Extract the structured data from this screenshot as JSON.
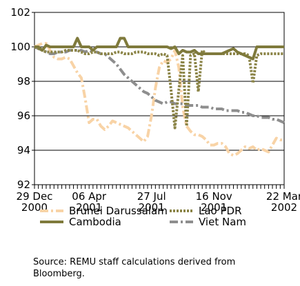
{
  "chart_data": {
    "type": "line",
    "categories": [
      "29 Dec\n2000",
      null,
      null,
      null,
      null,
      null,
      null,
      null,
      null,
      null,
      null,
      null,
      null,
      null,
      "06 Apr\n2001",
      null,
      null,
      null,
      null,
      null,
      null,
      null,
      null,
      null,
      null,
      null,
      null,
      null,
      null,
      null,
      "27 Jul\n2001",
      null,
      null,
      null,
      null,
      null,
      null,
      null,
      null,
      null,
      null,
      null,
      null,
      null,
      null,
      null,
      "16 Nov\n2001",
      null,
      null,
      null,
      null,
      null,
      null,
      null,
      null,
      null,
      null,
      null,
      null,
      null,
      null,
      null,
      null,
      null,
      "22 Mar\n2002"
    ],
    "series": [
      {
        "name": "Brunei Darussalam",
        "color": "#f8d3a6",
        "dash": "12 4 3 4",
        "values": [
          100.0,
          100.1,
          100.2,
          100.2,
          99.8,
          99.4,
          99.3,
          99.3,
          99.4,
          99.3,
          98.9,
          98.5,
          98.2,
          97.0,
          95.6,
          95.8,
          95.8,
          95.4,
          95.2,
          95.4,
          95.7,
          95.6,
          95.5,
          95.4,
          95.3,
          95.1,
          94.9,
          94.7,
          94.5,
          94.8,
          96.0,
          97.6,
          98.8,
          99.2,
          99.1,
          99.3,
          99.8,
          98.8,
          96.5,
          95.4,
          95.1,
          94.9,
          94.9,
          94.8,
          94.6,
          94.3,
          94.3,
          94.4,
          94.4,
          94.2,
          93.8,
          93.7,
          93.8,
          94.0,
          94.2,
          94.1,
          94.2,
          94.0,
          94.1,
          94.0,
          93.9,
          94.3,
          94.7,
          94.6,
          94.6
        ]
      },
      {
        "name": "Cambodia",
        "color": "#7f7a3c",
        "dash": "none",
        "values": [
          100.0,
          100.0,
          99.8,
          100.1,
          100.0,
          100.0,
          100.0,
          100.0,
          100.0,
          100.0,
          100.0,
          100.5,
          100.0,
          100.0,
          100.0,
          99.8,
          100.0,
          100.0,
          100.0,
          100.0,
          100.0,
          100.0,
          100.5,
          100.5,
          100.0,
          100.0,
          100.0,
          100.0,
          100.0,
          100.0,
          100.0,
          100.0,
          100.0,
          100.0,
          100.0,
          99.9,
          100.0,
          99.6,
          99.8,
          99.7,
          99.7,
          99.8,
          99.6,
          99.6,
          99.6,
          99.6,
          99.6,
          99.6,
          99.6,
          99.7,
          99.8,
          99.9,
          99.7,
          99.6,
          99.5,
          99.4,
          99.3,
          100.0,
          100.0,
          100.0,
          100.0,
          100.0,
          100.0,
          100.0,
          100.0
        ]
      },
      {
        "name": "Lao PDR",
        "color": "#8b8447",
        "dash": "3 2",
        "values": [
          100.0,
          99.9,
          99.8,
          99.7,
          99.7,
          99.7,
          99.7,
          99.7,
          99.8,
          99.8,
          99.8,
          99.8,
          99.7,
          99.6,
          99.6,
          99.7,
          99.7,
          99.6,
          99.6,
          99.6,
          99.6,
          99.7,
          99.7,
          99.6,
          99.6,
          99.6,
          99.7,
          99.7,
          99.7,
          99.6,
          99.6,
          99.6,
          99.5,
          99.6,
          99.5,
          97.5,
          95.3,
          97.5,
          99.5,
          95.4,
          99.5,
          99.6,
          97.4,
          99.8,
          99.6,
          99.6,
          99.6,
          99.6,
          99.6,
          99.6,
          99.6,
          99.6,
          99.6,
          99.6,
          99.6,
          99.5,
          97.9,
          99.5,
          99.6,
          99.6,
          99.6,
          99.6,
          99.6,
          99.6,
          99.6
        ]
      },
      {
        "name": "Viet Nam",
        "color": "#8e8e8e",
        "dash": "12 4 3 4",
        "values": [
          100.0,
          99.9,
          99.8,
          99.7,
          99.6,
          99.6,
          99.7,
          99.7,
          99.7,
          99.8,
          99.8,
          99.8,
          99.8,
          99.7,
          99.8,
          99.7,
          99.7,
          99.6,
          99.6,
          99.4,
          99.2,
          99.0,
          98.7,
          98.4,
          98.2,
          98.0,
          97.8,
          97.6,
          97.4,
          97.3,
          97.1,
          96.9,
          96.8,
          96.7,
          96.8,
          96.8,
          96.7,
          96.7,
          96.7,
          96.6,
          96.6,
          96.6,
          96.6,
          96.5,
          96.5,
          96.5,
          96.4,
          96.4,
          96.4,
          96.3,
          96.3,
          96.3,
          96.3,
          96.2,
          96.2,
          96.1,
          96.0,
          96.0,
          95.9,
          95.9,
          95.9,
          95.8,
          95.8,
          95.7,
          95.6
        ]
      }
    ],
    "ylim": [
      92,
      102
    ],
    "yticks": [
      92,
      94,
      96,
      98,
      100,
      102
    ],
    "grid": true,
    "source": "Source: REMU staff calculations derived from Bloomberg."
  }
}
